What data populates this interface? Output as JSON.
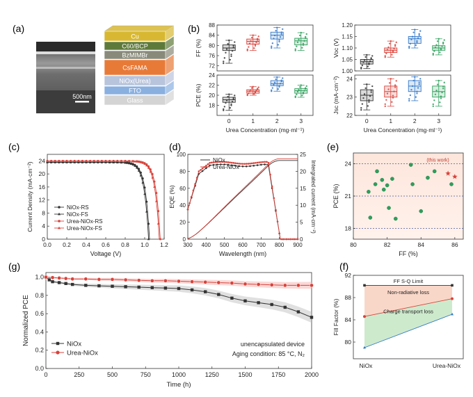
{
  "panel_letters": {
    "a": "(a)",
    "b": "(b)",
    "c": "(c)",
    "d": "(d)",
    "e": "(e)",
    "f": "(f)",
    "g": "(g)"
  },
  "colors": {
    "black": "#333333",
    "red": "#d9423a",
    "blue": "#3478c8",
    "green": "#2e9e5b",
    "light_red": "#f3a9a3"
  },
  "panel_a": {
    "scale_bar": "500nm",
    "stack_layers": [
      {
        "label": "Cu",
        "color": "#d8b832"
      },
      {
        "label": "C60/BCP",
        "color": "#5e7a3a"
      },
      {
        "label": "BzMIMBr",
        "color": "#8a8a7a"
      },
      {
        "label": "CsFAMA",
        "color": "#e87a38"
      },
      {
        "label": "NiOx(Urea)",
        "color": "#b8c4dc"
      },
      {
        "label": "FTO",
        "color": "#8ab0e0"
      },
      {
        "label": "Glass",
        "color": "#d4d4d4"
      }
    ]
  },
  "chart_data": [
    {
      "id": "b",
      "type": "box",
      "xlabel": "Urea Concentration (mg·ml⁻¹)",
      "categories": [
        "0",
        "1",
        "2",
        "3"
      ],
      "subplots": [
        {
          "ylabel": "FF (%)",
          "ylim": [
            70,
            88
          ],
          "yticks": [
            "72",
            "76",
            "80",
            "84",
            "88"
          ],
          "boxes": [
            {
              "q1": 78.0,
              "median": 79.0,
              "q3": 80.2,
              "min": 73,
              "max": 82
            },
            {
              "q1": 80.5,
              "median": 81.6,
              "q3": 82.5,
              "min": 78,
              "max": 84
            },
            {
              "q1": 82.5,
              "median": 84.0,
              "q3": 85.2,
              "min": 79,
              "max": 87
            },
            {
              "q1": 80.2,
              "median": 81.8,
              "q3": 82.8,
              "min": 78,
              "max": 85
            }
          ]
        },
        {
          "ylabel": "Voc (V)",
          "ylim": [
            1.0,
            1.2
          ],
          "yticks": [
            "1.00",
            "1.05",
            "1.10",
            "1.15",
            "1.20"
          ],
          "boxes": [
            {
              "q1": 1.03,
              "median": 1.04,
              "q3": 1.05,
              "min": 1.01,
              "max": 1.07
            },
            {
              "q1": 1.08,
              "median": 1.09,
              "q3": 1.1,
              "min": 1.06,
              "max": 1.13
            },
            {
              "q1": 1.12,
              "median": 1.14,
              "q3": 1.15,
              "min": 1.1,
              "max": 1.18
            },
            {
              "q1": 1.09,
              "median": 1.1,
              "q3": 1.11,
              "min": 1.07,
              "max": 1.14
            }
          ]
        },
        {
          "ylabel": "PCE (%)",
          "ylim": [
            16,
            24
          ],
          "yticks": [
            "18",
            "20",
            "22",
            "24"
          ],
          "boxes": [
            {
              "q1": 18.6,
              "median": 19.1,
              "q3": 19.6,
              "min": 17.0,
              "max": 20.2
            },
            {
              "q1": 20.4,
              "median": 20.8,
              "q3": 21.1,
              "min": 20.0,
              "max": 21.7
            },
            {
              "q1": 21.9,
              "median": 22.3,
              "q3": 22.9,
              "min": 20.8,
              "max": 23.6
            },
            {
              "q1": 20.4,
              "median": 20.9,
              "q3": 21.3,
              "min": 19.6,
              "max": 22.0
            }
          ]
        },
        {
          "ylabel": "Jsc (mA·cm⁻²)",
          "ylim": [
            22,
            24.2
          ],
          "yticks": [
            "22",
            "23",
            "24"
          ],
          "boxes": [
            {
              "q1": 22.8,
              "median": 23.1,
              "q3": 23.4,
              "min": 22.3,
              "max": 23.7
            },
            {
              "q1": 23.0,
              "median": 23.3,
              "q3": 23.6,
              "min": 22.5,
              "max": 24.0
            },
            {
              "q1": 23.3,
              "median": 23.6,
              "q3": 23.9,
              "min": 22.8,
              "max": 24.1
            },
            {
              "q1": 23.0,
              "median": 23.3,
              "q3": 23.6,
              "min": 22.5,
              "max": 23.9
            }
          ]
        }
      ]
    },
    {
      "id": "c",
      "type": "line",
      "xlabel": "Voltage (V)",
      "ylabel": "Current Density (mA·cm⁻²)",
      "xlim": [
        0,
        1.2
      ],
      "ylim": [
        0,
        26
      ],
      "xticks": [
        "0.0",
        "0.2",
        "0.4",
        "0.6",
        "0.8",
        "1.0",
        "1.2"
      ],
      "yticks": [
        "0",
        "4",
        "8",
        "12",
        "16",
        "20",
        "24"
      ],
      "series": [
        {
          "name": "NiOx-RS",
          "color": "#333333",
          "marker": "circle",
          "jsc": 23.6,
          "voc": 1.05
        },
        {
          "name": "NiOx-FS",
          "color": "#333333",
          "marker": "triangle",
          "jsc": 23.5,
          "voc": 1.04
        },
        {
          "name": "Urea-NiOx-RS",
          "color": "#d9423a",
          "marker": "circle",
          "jsc": 24.0,
          "voc": 1.16
        },
        {
          "name": "Urea-NiOx-FS",
          "color": "#d9423a",
          "marker": "triangle",
          "jsc": 23.9,
          "voc": 1.15
        }
      ]
    },
    {
      "id": "d",
      "type": "line",
      "xlabel": "Wavelength (nm)",
      "ylabel": "EQE (%)",
      "y2label": "Intergrated current (mA·cm⁻²)",
      "xlim": [
        300,
        900
      ],
      "ylim": [
        0,
        100
      ],
      "y2lim": [
        0,
        25
      ],
      "xticks": [
        "300",
        "400",
        "500",
        "600",
        "700",
        "800",
        "900"
      ],
      "yticks": [
        "0",
        "20",
        "40",
        "60",
        "80",
        "100"
      ],
      "y2ticks": [
        "0",
        "5",
        "10",
        "15",
        "20",
        "25"
      ],
      "series": [
        {
          "name": "NiOx",
          "color": "#333333",
          "eqe_plateau": 89,
          "integrated_final": 23.2
        },
        {
          "name": "Urea-NiOx",
          "color": "#d9423a",
          "eqe_plateau": 92,
          "integrated_final": 23.7
        }
      ]
    },
    {
      "id": "e",
      "type": "scatter",
      "xlabel": "FF (%)",
      "ylabel": "PCE (%)",
      "xlim": [
        80,
        86.5
      ],
      "ylim": [
        17,
        25
      ],
      "xticks": [
        "80",
        "82",
        "84",
        "86"
      ],
      "yticks": [
        "18",
        "21",
        "24"
      ],
      "annotation": "(this work)",
      "points": [
        [
          80.9,
          21.4
        ],
        [
          81.0,
          19.0
        ],
        [
          81.3,
          22.1
        ],
        [
          81.4,
          23.3
        ],
        [
          81.7,
          22.5
        ],
        [
          81.8,
          21.6
        ],
        [
          82.0,
          22.0
        ],
        [
          82.1,
          19.9
        ],
        [
          82.3,
          22.6
        ],
        [
          82.5,
          18.9
        ],
        [
          83.4,
          23.9
        ],
        [
          83.5,
          22.1
        ],
        [
          84.0,
          19.6
        ],
        [
          84.4,
          22.7
        ],
        [
          84.8,
          23.3
        ],
        [
          85.8,
          22.1
        ]
      ],
      "this_work": [
        [
          85.6,
          23.1
        ],
        [
          86.0,
          22.8
        ]
      ]
    },
    {
      "id": "f",
      "type": "line",
      "ylabel": "Fill Factor (%)",
      "categories": [
        "NiOx",
        "Urea-NiOx"
      ],
      "ylim": [
        77,
        92
      ],
      "yticks": [
        "80",
        "84",
        "88",
        "92"
      ],
      "labels": {
        "sq": "FF S-Q Limit",
        "nonrad": "Non-radiative loss",
        "transport": "Charge transport loss"
      },
      "series": [
        {
          "name": "FF S-Q Limit",
          "values": [
            90.2,
            90.2
          ],
          "color": "#333333"
        },
        {
          "name": "Non-radiative",
          "values": [
            84.6,
            87.8
          ],
          "color": "#d9423a"
        },
        {
          "name": "Charge transport",
          "values": [
            79.0,
            85.0
          ],
          "color": "#3478c8"
        }
      ]
    },
    {
      "id": "g",
      "type": "line",
      "xlabel": "Time (h)",
      "ylabel": "Normalized PCE",
      "xlim": [
        0,
        2000
      ],
      "ylim": [
        0,
        1.05
      ],
      "xticks": [
        "0",
        "250",
        "500",
        "750",
        "1000",
        "1250",
        "1500",
        "1750",
        "2000"
      ],
      "yticks": [
        "0.0",
        "0.2",
        "0.4",
        "0.6",
        "0.8",
        "1.0"
      ],
      "note1": "unencapsulated device",
      "note2": "Aging condition: 85 °C, N₂",
      "series": [
        {
          "name": "NiOx",
          "color": "#333333",
          "marker": "square",
          "x": [
            0,
            25,
            50,
            100,
            150,
            200,
            300,
            400,
            500,
            600,
            700,
            800,
            900,
            1000,
            1100,
            1200,
            1300,
            1400,
            1500,
            1600,
            1700,
            1800,
            1900,
            2000
          ],
          "values": [
            1.0,
            0.97,
            0.95,
            0.94,
            0.93,
            0.92,
            0.91,
            0.905,
            0.9,
            0.895,
            0.89,
            0.885,
            0.88,
            0.875,
            0.86,
            0.84,
            0.81,
            0.77,
            0.74,
            0.72,
            0.7,
            0.67,
            0.62,
            0.56
          ]
        },
        {
          "name": "Urea-NiOx",
          "color": "#d9423a",
          "marker": "circle",
          "x": [
            0,
            50,
            100,
            150,
            200,
            300,
            400,
            500,
            600,
            700,
            800,
            900,
            1000,
            1100,
            1200,
            1300,
            1400,
            1500,
            1600,
            1700,
            1800,
            1900,
            2000
          ],
          "values": [
            1.0,
            0.995,
            0.99,
            0.985,
            0.98,
            0.98,
            0.975,
            0.975,
            0.97,
            0.965,
            0.96,
            0.96,
            0.955,
            0.95,
            0.945,
            0.94,
            0.935,
            0.925,
            0.92,
            0.915,
            0.91,
            0.91,
            0.91
          ]
        }
      ]
    }
  ]
}
